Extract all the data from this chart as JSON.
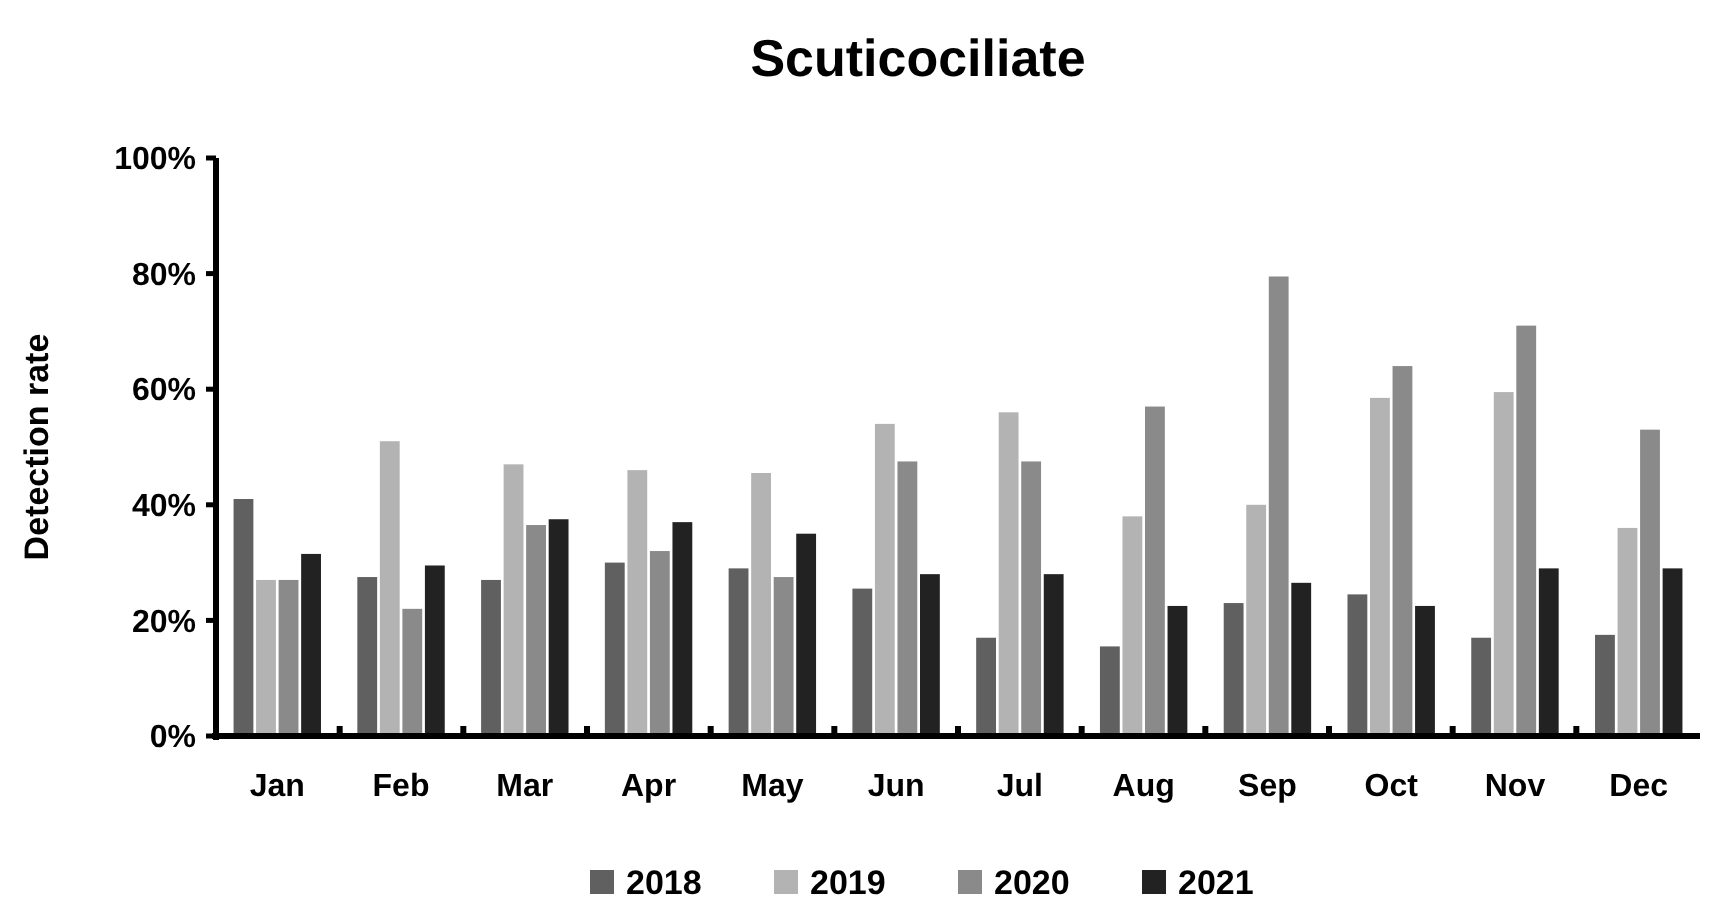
{
  "chart_data": {
    "type": "bar",
    "title": "Scuticociliate",
    "ylabel": "Detection rate",
    "categories": [
      "Jan",
      "Feb",
      "Mar",
      "Apr",
      "May",
      "Jun",
      "Jul",
      "Aug",
      "Sep",
      "Oct",
      "Nov",
      "Dec"
    ],
    "series": [
      {
        "name": "2018",
        "color": "#606060",
        "values": [
          41,
          27.5,
          27,
          30,
          29,
          25.5,
          17,
          15.5,
          23,
          24.5,
          17,
          17.5
        ]
      },
      {
        "name": "2019",
        "color": "#b3b3b3",
        "values": [
          27,
          51,
          47,
          46,
          45.5,
          54,
          56,
          38,
          40,
          58.5,
          59.5,
          36
        ]
      },
      {
        "name": "2020",
        "color": "#8a8a8a",
        "values": [
          27,
          22,
          36.5,
          32,
          27.5,
          47.5,
          47.5,
          57,
          79.5,
          64,
          71,
          53
        ]
      },
      {
        "name": "2021",
        "color": "#222222",
        "values": [
          31.5,
          29.5,
          37.5,
          37,
          35,
          28,
          28,
          22.5,
          26.5,
          22.5,
          29,
          29
        ]
      }
    ],
    "ylim": [
      0,
      100
    ],
    "yticks": [
      {
        "value": 0,
        "label": "0%"
      },
      {
        "value": 20,
        "label": "20%"
      },
      {
        "value": 40,
        "label": "40%"
      },
      {
        "value": 60,
        "label": "60%"
      },
      {
        "value": 80,
        "label": "80%"
      },
      {
        "value": 100,
        "label": "100%"
      }
    ],
    "grid": false,
    "legend": "bottom"
  }
}
